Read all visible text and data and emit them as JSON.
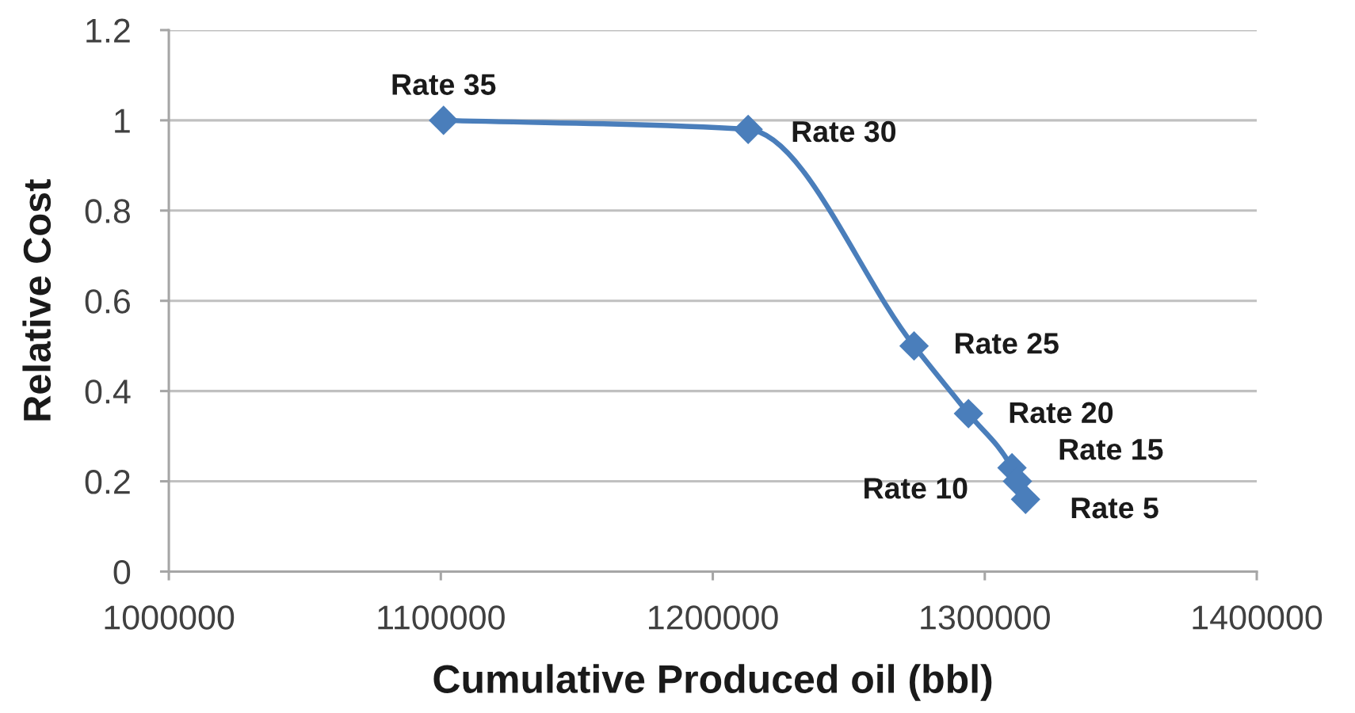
{
  "chart_data": {
    "type": "line",
    "xlabel": "Cumulative Produced oil (bbl)",
    "ylabel": "Relative Cost",
    "series": [
      {
        "color": "#4a7ebb",
        "x": [
          1101000,
          1213000,
          1274000,
          1294000,
          1310000,
          1312000,
          1315000
        ],
        "values": [
          1,
          0.98,
          0.5,
          0.35,
          0.23,
          0.2,
          0.16
        ]
      }
    ],
    "xlim": [
      1000000,
      1400000
    ],
    "xticks": [
      1000000,
      1100000,
      1200000,
      1300000,
      1400000
    ],
    "ylim": [
      0,
      1.2
    ],
    "yticks": [
      0,
      0.2,
      0.4,
      0.6,
      0.8,
      1,
      1.2
    ],
    "grid": "y",
    "marker": "diamond",
    "line_style": "solid",
    "annotations": [
      {
        "text": "Rate 35",
        "x": 1101000,
        "y": 1
      },
      {
        "text": "Rate 30",
        "x": 1213000,
        "y": 0.98
      },
      {
        "text": "Rate 25",
        "x": 1274000,
        "y": 0.5
      },
      {
        "text": "Rate 20",
        "x": 1294000,
        "y": 0.35
      },
      {
        "text": "Rate 15",
        "x": 1310000,
        "y": 0.23
      },
      {
        "text": "Rate 10",
        "x": 1312000,
        "y": 0.2
      },
      {
        "text": "Rate 5",
        "x": 1315000,
        "y": 0.16
      }
    ]
  }
}
